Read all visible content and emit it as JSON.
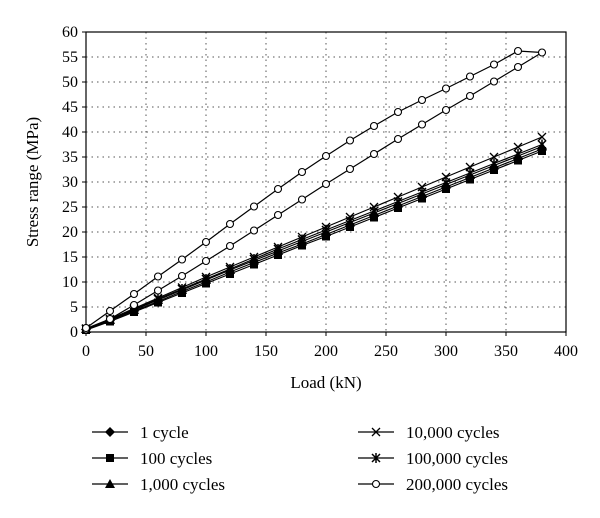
{
  "chart_data": {
    "type": "line",
    "xlabel": "Load (kN)",
    "ylabel": "Stress range (MPa)",
    "xlim": [
      0,
      400
    ],
    "ylim": [
      0,
      60
    ],
    "xticks": [
      "0",
      "50",
      "100",
      "150",
      "200",
      "250",
      "300",
      "350",
      "400"
    ],
    "yticks": [
      "0",
      "5",
      "10",
      "15",
      "20",
      "25",
      "30",
      "35",
      "40",
      "45",
      "50",
      "55",
      "60"
    ],
    "grid": "dotted",
    "legend_position": "bottom",
    "series": [
      {
        "name": "1 cycle",
        "marker": "diamond",
        "x": [
          0,
          20,
          40,
          60,
          80,
          100,
          120,
          140,
          160,
          180,
          200,
          220,
          240,
          260,
          280,
          300,
          320,
          340,
          360,
          380
        ],
        "y": [
          0.5,
          2.3,
          4.2,
          6.1,
          8.1,
          10.0,
          12.0,
          13.9,
          15.8,
          17.6,
          19.5,
          21.4,
          23.3,
          25.2,
          27.1,
          29.0,
          30.9,
          32.8,
          34.7,
          36.6
        ]
      },
      {
        "name": "100 cycles",
        "marker": "square",
        "x": [
          0,
          20,
          40,
          60,
          80,
          100,
          120,
          140,
          160,
          180,
          200,
          220,
          240,
          260,
          280,
          300,
          320,
          340,
          360,
          380
        ],
        "y": [
          0.4,
          2.1,
          4.0,
          5.9,
          7.8,
          9.7,
          11.6,
          13.5,
          15.4,
          17.3,
          19.1,
          21.0,
          22.9,
          24.8,
          26.7,
          28.6,
          30.5,
          32.4,
          34.3,
          36.2
        ]
      },
      {
        "name": "1,000 cycles",
        "marker": "triangle",
        "x": [
          0,
          20,
          40,
          60,
          80,
          100,
          120,
          140,
          160,
          180,
          200,
          220,
          240,
          260,
          280,
          300,
          320,
          340,
          360,
          380
        ],
        "y": [
          0.6,
          2.4,
          4.4,
          6.4,
          8.4,
          10.4,
          12.4,
          14.3,
          16.2,
          18.1,
          20.0,
          21.9,
          23.8,
          25.7,
          27.6,
          29.5,
          31.4,
          33.3,
          35.2,
          37.1
        ]
      },
      {
        "name": "10,000 cycles",
        "marker": "x",
        "x": [
          0,
          20,
          40,
          60,
          80,
          100,
          120,
          140,
          160,
          180,
          200,
          220,
          240,
          260,
          280,
          300,
          320,
          340,
          360,
          380
        ],
        "y": [
          0.7,
          2.6,
          4.7,
          6.8,
          8.9,
          11.0,
          13.0,
          15.0,
          17.0,
          19.0,
          21.0,
          23.0,
          25.0,
          27.0,
          29.0,
          31.0,
          33.0,
          35.0,
          37.0,
          39.0
        ]
      },
      {
        "name": "100,000 cycles",
        "marker": "star",
        "x": [
          0,
          20,
          40,
          60,
          80,
          100,
          120,
          140,
          160,
          180,
          200,
          220,
          240,
          260,
          280,
          300,
          320,
          340,
          360,
          380
        ],
        "y": [
          0.6,
          2.5,
          4.5,
          6.6,
          8.6,
          10.6,
          12.6,
          14.6,
          16.6,
          18.5,
          20.4,
          22.3,
          24.2,
          26.1,
          28.0,
          29.9,
          31.8,
          33.7,
          35.6,
          37.5
        ]
      },
      {
        "name": "200,000 cycles",
        "marker": "circle",
        "x": [
          0,
          20,
          40,
          60,
          80,
          100,
          120,
          140,
          160,
          180,
          200,
          220,
          240,
          260,
          280,
          300,
          320,
          340,
          360,
          380,
          360,
          340,
          320,
          300,
          280,
          260,
          240,
          220,
          200,
          180,
          160,
          140,
          120,
          100,
          80,
          60,
          40,
          20,
          0
        ],
        "y": [
          0.5,
          2.6,
          5.4,
          8.3,
          11.2,
          14.2,
          17.2,
          20.3,
          23.4,
          26.5,
          29.6,
          32.6,
          35.6,
          38.6,
          41.5,
          44.4,
          47.2,
          50.1,
          53.0,
          55.9,
          56.2,
          53.5,
          51.1,
          48.7,
          46.4,
          44.0,
          41.2,
          38.3,
          35.2,
          32.0,
          28.6,
          25.1,
          21.6,
          18.0,
          14.5,
          11.1,
          7.6,
          4.2,
          0.8
        ]
      }
    ]
  }
}
